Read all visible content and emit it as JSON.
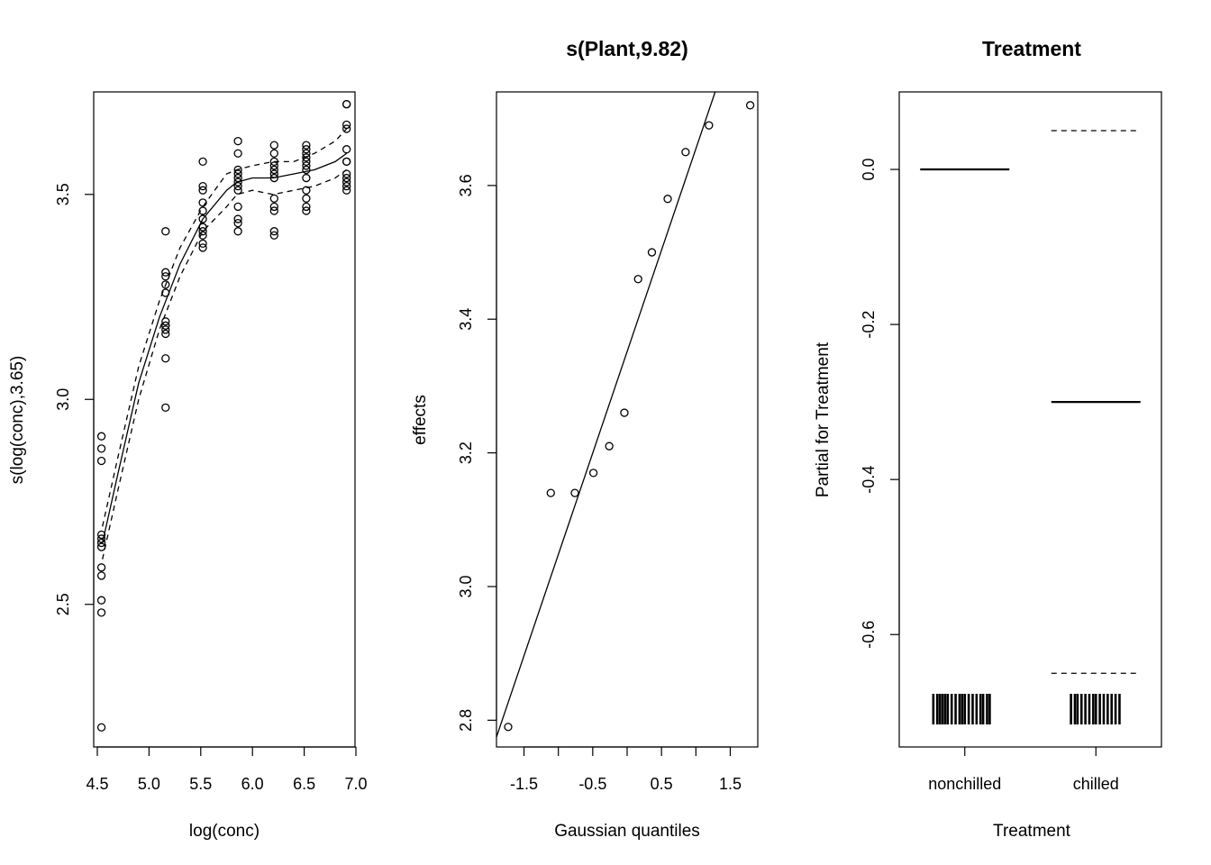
{
  "chart_data": [
    {
      "type": "line",
      "panel": 1,
      "title": "",
      "xlabel": "log(conc)",
      "ylabel": "s(log(conc),3.65)",
      "xlim": [
        4.5,
        7.0
      ],
      "ylim": [
        2.15,
        3.75
      ],
      "xticks": [
        4.5,
        5.0,
        5.5,
        6.0,
        6.5,
        7.0
      ],
      "xtick_labels": [
        "4.5",
        "5.0",
        "5.5",
        "6.0",
        "6.5",
        "7.0"
      ],
      "yticks": [
        2.5,
        3.0,
        3.5
      ],
      "ytick_labels": [
        "2.5",
        "3.0",
        "3.5"
      ],
      "smooth": {
        "x": [
          4.55,
          4.7,
          4.9,
          5.1,
          5.3,
          5.52,
          5.75,
          5.85,
          6.0,
          6.2,
          6.4,
          6.6,
          6.8,
          6.91
        ],
        "fit": [
          2.65,
          2.82,
          3.04,
          3.2,
          3.33,
          3.44,
          3.51,
          3.53,
          3.54,
          3.54,
          3.55,
          3.56,
          3.58,
          3.6
        ],
        "upper": [
          2.69,
          2.86,
          3.08,
          3.24,
          3.37,
          3.47,
          3.55,
          3.56,
          3.57,
          3.58,
          3.58,
          3.6,
          3.63,
          3.66
        ],
        "lower": [
          2.61,
          2.78,
          3.0,
          3.17,
          3.3,
          3.41,
          3.47,
          3.5,
          3.51,
          3.5,
          3.51,
          3.52,
          3.54,
          3.56
        ]
      },
      "points": {
        "x": [
          4.54,
          4.54,
          4.54,
          4.54,
          4.54,
          4.54,
          4.54,
          4.54,
          4.54,
          4.54,
          4.54,
          4.54,
          5.16,
          5.16,
          5.16,
          5.16,
          5.16,
          5.16,
          5.16,
          5.16,
          5.16,
          5.16,
          5.16,
          5.16,
          5.52,
          5.52,
          5.52,
          5.52,
          5.52,
          5.52,
          5.52,
          5.52,
          5.52,
          5.52,
          5.52,
          5.52,
          5.86,
          5.86,
          5.86,
          5.86,
          5.86,
          5.86,
          5.86,
          5.86,
          5.86,
          5.86,
          5.86,
          5.86,
          6.21,
          6.21,
          6.21,
          6.21,
          6.21,
          6.21,
          6.21,
          6.21,
          6.21,
          6.21,
          6.21,
          6.21,
          6.52,
          6.52,
          6.52,
          6.52,
          6.52,
          6.52,
          6.52,
          6.52,
          6.52,
          6.52,
          6.52,
          6.52,
          6.91,
          6.91,
          6.91,
          6.91,
          6.91,
          6.91,
          6.91,
          6.91,
          6.91,
          6.91,
          6.91,
          6.91
        ],
        "y": [
          2.91,
          2.88,
          2.85,
          2.67,
          2.66,
          2.65,
          2.64,
          2.59,
          2.57,
          2.51,
          2.48,
          2.2,
          3.41,
          3.31,
          3.3,
          3.28,
          3.26,
          3.19,
          3.18,
          3.17,
          3.16,
          3.1,
          2.98,
          3.18,
          3.58,
          3.52,
          3.51,
          3.48,
          3.46,
          3.44,
          3.42,
          3.41,
          3.4,
          3.38,
          3.37,
          3.42,
          3.63,
          3.6,
          3.56,
          3.55,
          3.54,
          3.52,
          3.51,
          3.47,
          3.44,
          3.43,
          3.41,
          3.53,
          3.62,
          3.6,
          3.58,
          3.57,
          3.56,
          3.54,
          3.49,
          3.47,
          3.46,
          3.41,
          3.4,
          3.55,
          3.62,
          3.61,
          3.6,
          3.59,
          3.58,
          3.56,
          3.54,
          3.51,
          3.49,
          3.47,
          3.46,
          3.57,
          3.72,
          3.72,
          3.67,
          3.66,
          3.61,
          3.58,
          3.55,
          3.54,
          3.53,
          3.52,
          3.51,
          3.58
        ]
      }
    },
    {
      "type": "scatter",
      "panel": 2,
      "title": "s(Plant,9.82)",
      "xlabel": "Gaussian quantiles",
      "ylabel": "effects",
      "xlim": [
        -1.9,
        1.9
      ],
      "ylim": [
        2.76,
        3.74
      ],
      "xticks": [
        -1.5,
        -1.0,
        -0.5,
        0.0,
        0.5,
        1.0,
        1.5
      ],
      "xtick_labels": [
        "-1.5",
        "",
        "-0.5",
        "",
        "0.5",
        "",
        "1.5"
      ],
      "yticks": [
        2.8,
        3.0,
        3.2,
        3.4,
        3.6
      ],
      "ytick_labels": [
        "2.8",
        "3.0",
        "3.2",
        "3.4",
        "3.6"
      ],
      "points": {
        "x": [
          -1.73,
          -1.11,
          -0.76,
          -0.49,
          -0.26,
          -0.04,
          0.16,
          0.36,
          0.59,
          0.85,
          1.19,
          1.79
        ],
        "y": [
          2.79,
          3.14,
          3.14,
          3.17,
          3.21,
          3.26,
          3.46,
          3.5,
          3.58,
          3.65,
          3.69,
          3.72
        ]
      },
      "line": {
        "x": [
          -1.9,
          1.28
        ],
        "y": [
          2.775,
          3.74
        ]
      }
    },
    {
      "type": "line",
      "panel": 3,
      "title": "Treatment",
      "xlabel": "Treatment",
      "ylabel": "Partial for Treatment",
      "xlim": [
        0.5,
        2.5
      ],
      "ylim": [
        -0.745,
        0.1
      ],
      "categories": [
        "nonchilled",
        "chilled"
      ],
      "yticks": [
        0.0,
        -0.2,
        -0.4,
        -0.6
      ],
      "ytick_labels": [
        "0.0",
        "-0.2",
        "-0.4",
        "-0.6"
      ],
      "effect": [
        0.0,
        -0.3
      ],
      "upper": [
        null,
        0.05
      ],
      "lower": [
        null,
        -0.65
      ],
      "rug": {
        "nonchilled": [
          0.76,
          0.79,
          0.81,
          0.83,
          0.85,
          0.87,
          0.9,
          0.93,
          0.96,
          0.98,
          1.0,
          1.03,
          1.06,
          1.09,
          1.12,
          1.14,
          1.17,
          1.19
        ],
        "chilled": [
          1.81,
          1.84,
          1.86,
          1.89,
          1.92,
          1.95,
          1.98,
          2.0,
          2.03,
          2.06,
          2.09,
          2.12,
          2.15,
          2.18
        ]
      }
    }
  ]
}
